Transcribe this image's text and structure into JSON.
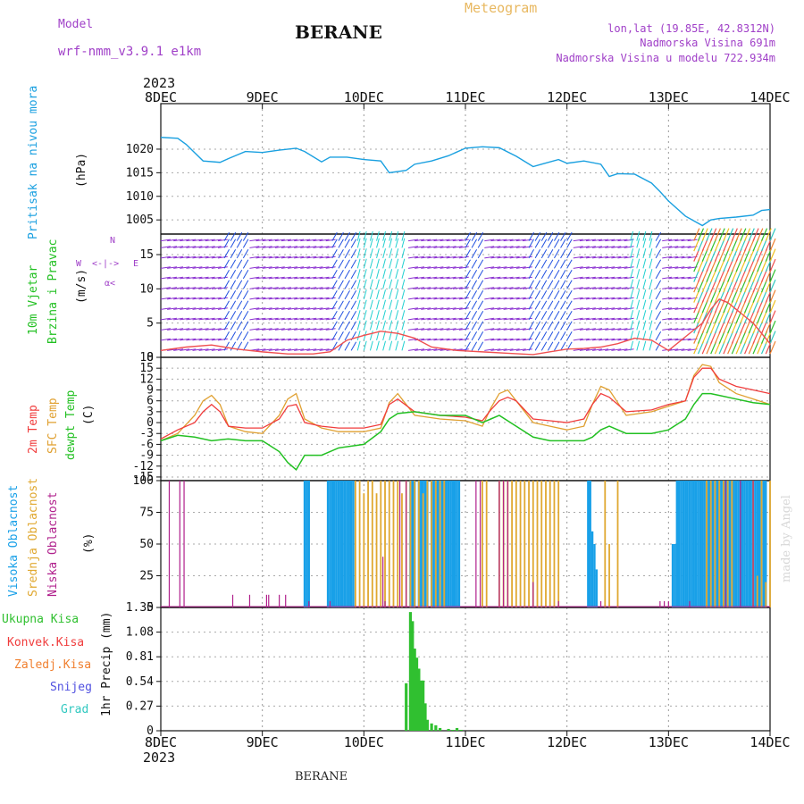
{
  "header": {
    "model_label": "Model",
    "model_name": "wrf-nmm_v3.9.1  e1km",
    "title": "BERANE",
    "meteogram": "Meteogram",
    "lonlat": "lon,lat (19.85E, 42.8312N)",
    "elevation": "Nadmorska Visina 691m",
    "model_elevation": "Nadmorska Visina u modelu 722.934m",
    "year_top": "2023",
    "year_bottom": "2023",
    "footer_station": "BERANE",
    "watermark": "made by Angel"
  },
  "time_axis": {
    "labels": [
      "8DEC",
      "9DEC",
      "10DEC",
      "11DEC",
      "12DEC",
      "13DEC",
      "14DEC"
    ],
    "hours_total": 144
  },
  "panel_labels": {
    "pressure": {
      "name": "Pritisak na nivou mora",
      "unit": "(hPa)"
    },
    "wind": {
      "name1": "10m Vjetar",
      "name2": "Brzina i Pravac",
      "unit": "(m/s)",
      "rose": "N\n<-|->\nW   E\nα<",
      "rose_w": "W",
      "rose_e": "E",
      "rose_n": "N",
      "rose_s": "α<"
    },
    "temp": {
      "t2m": "2m Temp",
      "sfc": "SFC Temp",
      "dew": "dewpt Temp",
      "unit": "(C)"
    },
    "cloud": {
      "high": "Visoka Oblacnost",
      "mid": "Srednja Oblacnost",
      "low": "Niska Oblacnost",
      "unit": "(%)"
    },
    "precip": {
      "total": "Ukupna Kisa",
      "conv": "Konvek.Kisa",
      "frz": "Zaledj.Kisa",
      "snow": "Snijeg",
      "hail": "Grad",
      "unit": "1hr Precip (mm)"
    }
  },
  "colors": {
    "pressure": "#1aa0e0",
    "t2m": "#f03c3c",
    "sfc": "#e0a030",
    "dew": "#22c022",
    "cloud_high": "#18a0e8",
    "cloud_mid": "#e0a830",
    "cloud_low": "#b0208c",
    "precip_total": "#30c030",
    "precip_conv": "#f03c3c",
    "precip_frz": "#f08030",
    "precip_snow": "#5050e0",
    "precip_hail": "#30c8c0",
    "wind_purple": "#8a30d0",
    "wind_blue": "#2050e0",
    "wind_cyan": "#20d0d0",
    "wind_speed": "#f05050"
  },
  "chart_data": [
    {
      "type": "line",
      "panel": "pressure",
      "ylabel": "(hPa)",
      "ylim": [
        1002,
        1027
      ],
      "yticks": [
        1005,
        1010,
        1015,
        1020
      ],
      "series": [
        {
          "name": "Pritisak na nivou mora",
          "x": [
            0,
            4,
            6,
            10,
            14,
            16,
            20,
            24,
            28,
            32,
            34,
            38,
            40,
            44,
            48,
            52,
            54,
            58,
            60,
            64,
            68,
            72,
            76,
            80,
            84,
            88,
            90,
            94,
            96,
            100,
            104,
            106,
            108,
            112,
            116,
            118,
            120,
            124,
            128,
            130,
            132,
            136,
            140,
            142,
            144
          ],
          "y": [
            1022.5,
            1022.3,
            1021,
            1017.5,
            1017.2,
            1018,
            1019.5,
            1019.3,
            1019.8,
            1020.2,
            1019.5,
            1017.3,
            1018.3,
            1018.3,
            1017.8,
            1017.5,
            1015,
            1015.5,
            1016.8,
            1017.5,
            1018.6,
            1020.2,
            1020.5,
            1020.3,
            1018.5,
            1016.3,
            1016.8,
            1017.8,
            1017,
            1017.5,
            1016.8,
            1014.2,
            1014.8,
            1014.7,
            1012.8,
            1011,
            1009,
            1005.8,
            1003.8,
            1005,
            1005.3,
            1005.6,
            1006,
            1007,
            1007.2
          ]
        }
      ]
    },
    {
      "type": "line",
      "panel": "wind",
      "ylabel": "(m/s)",
      "ylim": [
        0,
        18
      ],
      "yticks": [
        0,
        5,
        10,
        15
      ],
      "series": [
        {
          "name": "wind speed",
          "x": [
            0,
            6,
            12,
            18,
            24,
            30,
            36,
            40,
            44,
            48,
            52,
            56,
            60,
            64,
            70,
            76,
            82,
            88,
            92,
            96,
            100,
            104,
            108,
            112,
            116,
            120,
            124,
            128,
            130,
            132,
            134,
            136,
            138,
            140,
            144
          ],
          "y": [
            1,
            1.5,
            1.8,
            1.2,
            0.8,
            0.5,
            0.5,
            0.8,
            2.5,
            3.2,
            3.8,
            3.5,
            2.8,
            1.5,
            1,
            0.8,
            0.6,
            0.4,
            0.8,
            1.2,
            1.3,
            1.5,
            2,
            2.8,
            2.5,
            1,
            3,
            5,
            7,
            8.5,
            8,
            7,
            6,
            5,
            2
          ]
        }
      ]
    },
    {
      "type": "line",
      "panel": "temp",
      "ylabel": "(C)",
      "ylim": [
        -16,
        18
      ],
      "yticks": [
        -15,
        -12,
        -9,
        -6,
        -3,
        0,
        3,
        6,
        9,
        12,
        15,
        18
      ],
      "series": [
        {
          "name": "2m Temp",
          "x": [
            0,
            4,
            8,
            10,
            12,
            14,
            16,
            20,
            24,
            28,
            30,
            32,
            34,
            38,
            42,
            48,
            52,
            54,
            56,
            60,
            66,
            72,
            76,
            78,
            80,
            82,
            84,
            88,
            92,
            96,
            100,
            102,
            104,
            106,
            110,
            116,
            120,
            124,
            126,
            128,
            130,
            132,
            136,
            140,
            144
          ],
          "y": [
            -4.5,
            -2,
            0,
            3,
            5,
            3,
            -1,
            -1.5,
            -1.5,
            1,
            4.5,
            5,
            0,
            -1,
            -1.5,
            -1.5,
            -0.5,
            5,
            6.5,
            3,
            2,
            1.5,
            0.5,
            3.5,
            6,
            7,
            6,
            1,
            0.5,
            0,
            1,
            5,
            8,
            7,
            3,
            3.5,
            5,
            6,
            12.5,
            15,
            15,
            12,
            10,
            9,
            8
          ]
        },
        {
          "name": "SFC Temp",
          "x": [
            0,
            4,
            8,
            10,
            12,
            14,
            16,
            20,
            24,
            28,
            30,
            32,
            34,
            38,
            42,
            48,
            52,
            54,
            56,
            60,
            66,
            72,
            76,
            78,
            80,
            82,
            84,
            88,
            92,
            96,
            100,
            102,
            104,
            106,
            110,
            116,
            120,
            124,
            126,
            128,
            130,
            132,
            136,
            140,
            144
          ],
          "y": [
            -5,
            -3,
            2,
            6,
            7.5,
            5,
            -1,
            -2.5,
            -3,
            2,
            6.5,
            8,
            1,
            -1.5,
            -2.5,
            -2.5,
            -1.5,
            5.5,
            8,
            2,
            1,
            0.5,
            -1,
            4,
            8,
            9,
            6,
            0,
            -1,
            -2,
            -1,
            5,
            10,
            9,
            2,
            3,
            4.5,
            6,
            13,
            16,
            15.5,
            11,
            8,
            6.5,
            5
          ]
        },
        {
          "name": "dewpt Temp",
          "x": [
            0,
            4,
            8,
            12,
            16,
            20,
            24,
            28,
            30,
            32,
            34,
            38,
            42,
            48,
            52,
            54,
            56,
            60,
            66,
            72,
            76,
            78,
            80,
            84,
            88,
            92,
            96,
            100,
            102,
            104,
            106,
            110,
            116,
            120,
            124,
            126,
            128,
            130,
            132,
            136,
            140,
            144
          ],
          "y": [
            -5,
            -3.5,
            -4,
            -5,
            -4.5,
            -5,
            -5,
            -8,
            -11,
            -13,
            -9,
            -9,
            -7,
            -6,
            -2.5,
            1,
            2.5,
            3,
            2,
            2,
            0,
            1,
            2,
            -1,
            -4,
            -5,
            -5,
            -5,
            -4,
            -2,
            -1,
            -3,
            -3,
            -2,
            1,
            5,
            8,
            8,
            7.5,
            6.5,
            5.5,
            5
          ]
        }
      ]
    },
    {
      "type": "bar",
      "panel": "cloud",
      "ylabel": "(%)",
      "ylim": [
        0,
        100
      ],
      "yticks": [
        0,
        25,
        50,
        75,
        100
      ],
      "series": [
        {
          "name": "Visoka Oblacnost",
          "x": [
            34,
            34.5,
            35,
            39.5,
            40,
            40.5,
            41,
            41.5,
            42,
            42.5,
            43,
            43.5,
            44,
            44.5,
            45,
            45.5,
            59,
            59.5,
            60,
            61,
            61.5,
            62,
            62.5,
            63,
            64,
            64.5,
            65,
            65.5,
            66,
            66.5,
            67,
            67.5,
            68,
            68.5,
            69,
            69.5,
            70,
            70.5,
            101,
            101.5,
            102,
            102.5,
            103,
            121,
            121.5,
            122,
            122.5,
            123,
            123.5,
            124,
            124.5,
            125,
            125.5,
            126,
            126.5,
            127,
            127.5,
            128,
            128.5,
            129,
            129.5,
            130,
            130.5,
            131,
            131.5,
            132,
            132.5,
            133,
            133.5,
            134,
            134.5,
            135,
            135.5,
            136,
            136.5,
            137,
            137.5,
            138,
            138.5,
            139,
            139.5,
            140,
            140.5,
            141,
            141.5,
            142,
            142.5,
            143
          ],
          "y": [
            100,
            100,
            100,
            100,
            100,
            100,
            100,
            100,
            100,
            100,
            100,
            100,
            100,
            100,
            100,
            100,
            100,
            100,
            100,
            100,
            100,
            100,
            100,
            100,
            100,
            100,
            100,
            100,
            100,
            100,
            100,
            100,
            100,
            100,
            100,
            100,
            100,
            100,
            100,
            100,
            60,
            50,
            30,
            50,
            50,
            100,
            100,
            100,
            100,
            100,
            100,
            100,
            100,
            100,
            100,
            100,
            100,
            100,
            100,
            100,
            100,
            100,
            100,
            100,
            100,
            100,
            100,
            100,
            100,
            100,
            100,
            100,
            100,
            100,
            100,
            100,
            100,
            100,
            100,
            100,
            100,
            100,
            100,
            100,
            100,
            100,
            100,
            100
          ]
        },
        {
          "name": "Srednja Oblacnost",
          "x": [
            46,
            47,
            48,
            49,
            50,
            51,
            52,
            53,
            54,
            55,
            56,
            57,
            58,
            59,
            60,
            61,
            62,
            63,
            64,
            65,
            66,
            67,
            76,
            77,
            80,
            81,
            82,
            83,
            84,
            85,
            86,
            87,
            88,
            89,
            90,
            91,
            92,
            93,
            94,
            105,
            106,
            108,
            129,
            130,
            131,
            132,
            133,
            134,
            135,
            140,
            141,
            142,
            143,
            144
          ],
          "y": [
            100,
            100,
            90,
            100,
            100,
            90,
            100,
            100,
            100,
            100,
            100,
            90,
            100,
            100,
            100,
            100,
            90,
            100,
            100,
            100,
            100,
            100,
            100,
            100,
            100,
            100,
            100,
            100,
            100,
            100,
            100,
            100,
            100,
            100,
            100,
            100,
            100,
            100,
            100,
            100,
            50,
            100,
            100,
            100,
            100,
            100,
            100,
            100,
            100,
            100,
            25,
            100,
            20,
            100
          ]
        },
        {
          "name": "Niska Oblacnost",
          "x": [
            2,
            4.5,
            5.5,
            17,
            21,
            25,
            25.5,
            28,
            29.5,
            35,
            40,
            52.5,
            53,
            56.5,
            58,
            74.5,
            75.5,
            80,
            81,
            82,
            88,
            94,
            104,
            118,
            119,
            120,
            125,
            133.5,
            137,
            140
          ],
          "y": [
            100,
            100,
            100,
            10,
            10,
            10,
            10,
            10,
            10,
            5,
            5,
            40,
            5,
            100,
            100,
            100,
            100,
            100,
            100,
            100,
            20,
            5,
            5,
            5,
            5,
            5,
            5,
            100,
            100,
            100
          ]
        }
      ]
    },
    {
      "type": "bar",
      "panel": "precip",
      "ylabel": "1hr Precip (mm)",
      "ylim": [
        0,
        1.35
      ],
      "yticks": [
        0,
        0.27,
        0.54,
        0.81,
        1.08,
        1.35
      ],
      "series": [
        {
          "name": "Ukupna Kisa",
          "x": [
            58,
            59,
            59.5,
            60,
            60.5,
            61,
            61.5,
            62,
            62.5,
            63,
            64,
            65,
            66,
            68,
            69,
            70,
            71
          ],
          "y": [
            0.52,
            1.3,
            1.2,
            0.9,
            0.8,
            0.68,
            0.55,
            0.55,
            0.3,
            0.12,
            0.08,
            0.06,
            0.03,
            0.02,
            0.01,
            0.03,
            0.01
          ]
        }
      ]
    }
  ]
}
